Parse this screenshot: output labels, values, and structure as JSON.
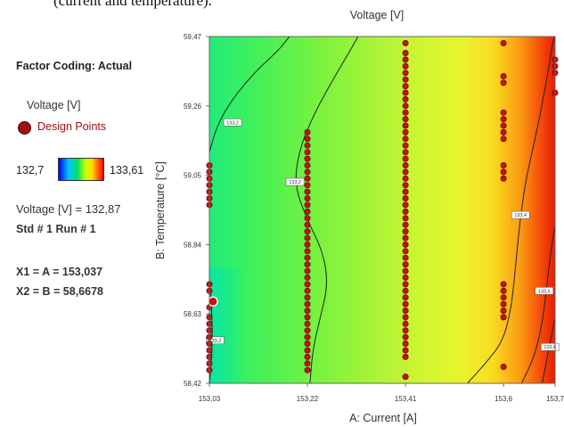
{
  "page_caption": "(current and temperature).",
  "panel": {
    "factor_coding": "Factor Coding: Actual",
    "response_name": "Voltage [V]",
    "design_points_label": "Design Points",
    "color_low": "132,7",
    "color_high": "133,61",
    "cursor_value": "Voltage [V] = 132,87",
    "std_run": "Std # 1 Run # 1",
    "x1": "X1 = A = 153,037",
    "x2": "X2 = B = 58,6678"
  },
  "chart_data": {
    "type": "contour",
    "title": "Voltage [V]",
    "xlabel": "A: Current [A]",
    "ylabel": "B: Temperature [°C]",
    "xlim": [
      153.03,
      153.7
    ],
    "ylim": [
      58.42,
      59.47
    ],
    "x_ticks": [
      "153,03",
      "153,22",
      "153,41",
      "153,6",
      "153,7"
    ],
    "x_tick_values": [
      153.03,
      153.22,
      153.41,
      153.6,
      153.7
    ],
    "y_ticks": [
      "58,42",
      "58,63",
      "58,84",
      "59,05",
      "59,26",
      "59,47"
    ],
    "y_tick_values": [
      58.42,
      58.63,
      58.84,
      59.05,
      59.26,
      59.47
    ],
    "color_scale": {
      "low": 132.7,
      "high": 133.61,
      "colors": [
        "#0000ff",
        "#00c8ff",
        "#00e060",
        "#c8ff00",
        "#ffdc00",
        "#ff6000",
        "#ff0000"
      ]
    },
    "contours": [
      {
        "label": "133,2",
        "points": [
          [
            153.0305,
            58.42
          ],
          [
            153.034,
            58.5
          ],
          [
            153.036,
            58.56
          ],
          [
            153.0345,
            58.63
          ],
          [
            153.032,
            58.7
          ]
        ]
      },
      {
        "label": "133,2",
        "points": [
          [
            153.03,
            59.12
          ],
          [
            153.045,
            59.2
          ],
          [
            153.07,
            59.27
          ],
          [
            153.1,
            59.33
          ],
          [
            153.13,
            59.38
          ],
          [
            153.165,
            59.43
          ],
          [
            153.185,
            59.47
          ]
        ]
      },
      {
        "label": "133,2",
        "points": [
          [
            153.225,
            58.42
          ],
          [
            153.23,
            58.52
          ],
          [
            153.245,
            58.62
          ],
          [
            153.26,
            58.72
          ],
          [
            153.25,
            58.82
          ],
          [
            153.218,
            58.92
          ],
          [
            153.195,
            59.02
          ],
          [
            153.203,
            59.12
          ],
          [
            153.228,
            59.22
          ],
          [
            153.262,
            59.32
          ],
          [
            153.3,
            59.42
          ],
          [
            153.318,
            59.47
          ]
        ]
      },
      {
        "label": "133,4",
        "points": [
          [
            153.53,
            58.42
          ],
          [
            153.565,
            58.48
          ],
          [
            153.6,
            58.55
          ],
          [
            153.615,
            58.65
          ],
          [
            153.622,
            58.75
          ],
          [
            153.628,
            58.85
          ],
          [
            153.635,
            58.95
          ],
          [
            153.645,
            59.05
          ],
          [
            153.66,
            59.15
          ],
          [
            153.673,
            59.25
          ],
          [
            153.685,
            59.35
          ],
          [
            153.695,
            59.45
          ],
          [
            153.7,
            59.47
          ]
        ]
      },
      {
        "label": "133,5",
        "points": [
          [
            153.635,
            58.42
          ],
          [
            153.66,
            58.5
          ],
          [
            153.675,
            58.6
          ],
          [
            153.683,
            58.7
          ],
          [
            153.69,
            58.8
          ],
          [
            153.7,
            58.9
          ]
        ]
      },
      {
        "label": "133,6",
        "points": [
          [
            153.675,
            58.42
          ],
          [
            153.685,
            58.5
          ],
          [
            153.695,
            58.58
          ],
          [
            153.7,
            58.62
          ]
        ]
      }
    ],
    "contour_label_positions": [
      {
        "label": "133,2",
        "x": 153.041,
        "y": 58.55
      },
      {
        "label": "133,2",
        "x": 153.075,
        "y": 59.21
      },
      {
        "label": "133,2",
        "x": 153.196,
        "y": 59.03
      },
      {
        "label": "133,4",
        "x": 153.633,
        "y": 58.93
      },
      {
        "label": "133,5",
        "x": 153.679,
        "y": 58.7
      },
      {
        "label": "133,6",
        "x": 153.69,
        "y": 58.53
      }
    ],
    "design_point_columns": [
      {
        "x": 153.03,
        "y_values": [
          58.46,
          58.48,
          58.5,
          58.52,
          58.54,
          58.56,
          58.58,
          58.6,
          58.62,
          58.65,
          58.7,
          58.72,
          58.96,
          58.98,
          59,
          59.02,
          59.04,
          59.06,
          59.08
        ]
      },
      {
        "x": 153.22,
        "y_values": [
          58.46,
          58.48,
          58.5,
          58.52,
          58.54,
          58.56,
          58.58,
          58.6,
          58.62,
          58.64,
          58.66,
          58.68,
          58.7,
          58.72,
          58.74,
          58.76,
          58.78,
          58.8,
          58.82,
          58.84,
          58.86,
          58.88,
          58.9,
          58.92,
          58.94,
          58.96,
          58.98,
          59,
          59.02,
          59.04,
          59.06,
          59.08,
          59.1,
          59.12,
          59.14,
          59.16,
          59.18
        ]
      },
      {
        "x": 153.41,
        "y_values": [
          58.44,
          58.5,
          58.52,
          58.54,
          58.56,
          58.58,
          58.6,
          58.62,
          58.64,
          58.66,
          58.68,
          58.7,
          58.72,
          58.74,
          58.76,
          58.78,
          58.8,
          58.82,
          58.84,
          58.86,
          58.88,
          58.9,
          58.92,
          58.94,
          58.96,
          58.98,
          59,
          59.02,
          59.04,
          59.06,
          59.08,
          59.1,
          59.12,
          59.14,
          59.16,
          59.18,
          59.2,
          59.22,
          59.24,
          59.26,
          59.28,
          59.3,
          59.32,
          59.34,
          59.36,
          59.38,
          59.4,
          59.42,
          59.45
        ]
      },
      {
        "x": 153.6,
        "y_values": [
          58.47,
          58.62,
          58.64,
          58.66,
          58.68,
          58.7,
          58.72,
          59.04,
          59.06,
          59.08,
          59.16,
          59.18,
          59.2,
          59.22,
          59.24,
          59.33,
          59.35,
          59.45
        ]
      },
      {
        "x": 153.7,
        "y_values": [
          59.3,
          59.36,
          59.38,
          59.4
        ]
      }
    ],
    "selected_point": {
      "x": 153.037,
      "y": 58.6678
    },
    "grid": false
  }
}
